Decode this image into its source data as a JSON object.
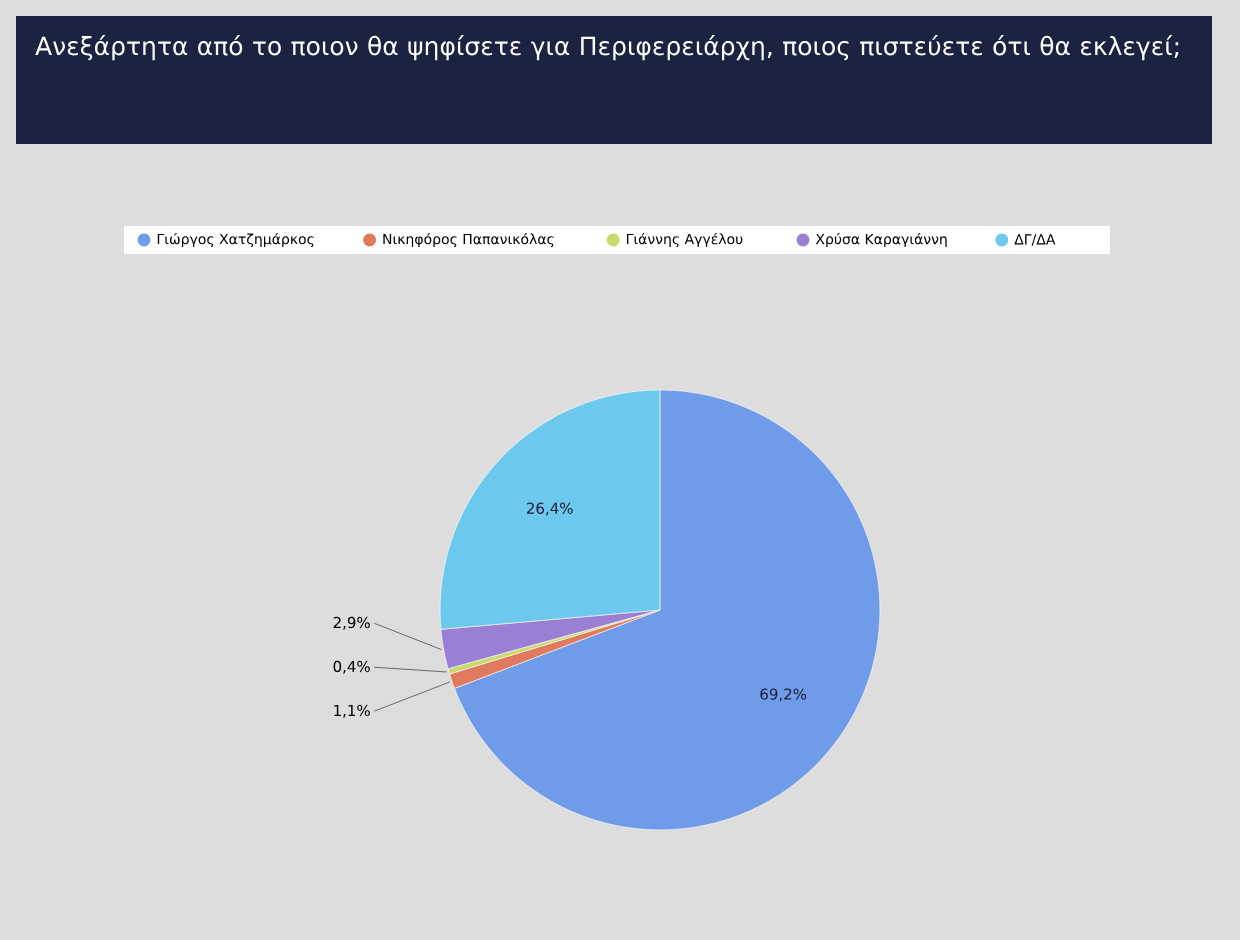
{
  "chart_data": {
    "type": "pie",
    "title": "Ανεξάρτητα από το ποιον θα ψηφίσετε για Περιφερειάρχη, ποιος πιστεύετε ότι θα εκλεγεί;",
    "categories": [
      "Γιώργος Χατζημάρκος",
      "Νικηφόρος Παπανικόλας",
      "Γιάννης Αγγέλου",
      "Χρύσα Καραγιάννη",
      "ΔΓ/ΔΑ"
    ],
    "values": [
      69.2,
      1.1,
      0.4,
      2.9,
      26.4
    ],
    "value_labels": [
      "69,2%",
      "1,1%",
      "0,4%",
      "2,9%",
      "26,4%"
    ],
    "colors": [
      "#6f9be8",
      "#e07a5f",
      "#c9d96a",
      "#9b7fd4",
      "#6cc8ec"
    ],
    "legend": "top"
  }
}
